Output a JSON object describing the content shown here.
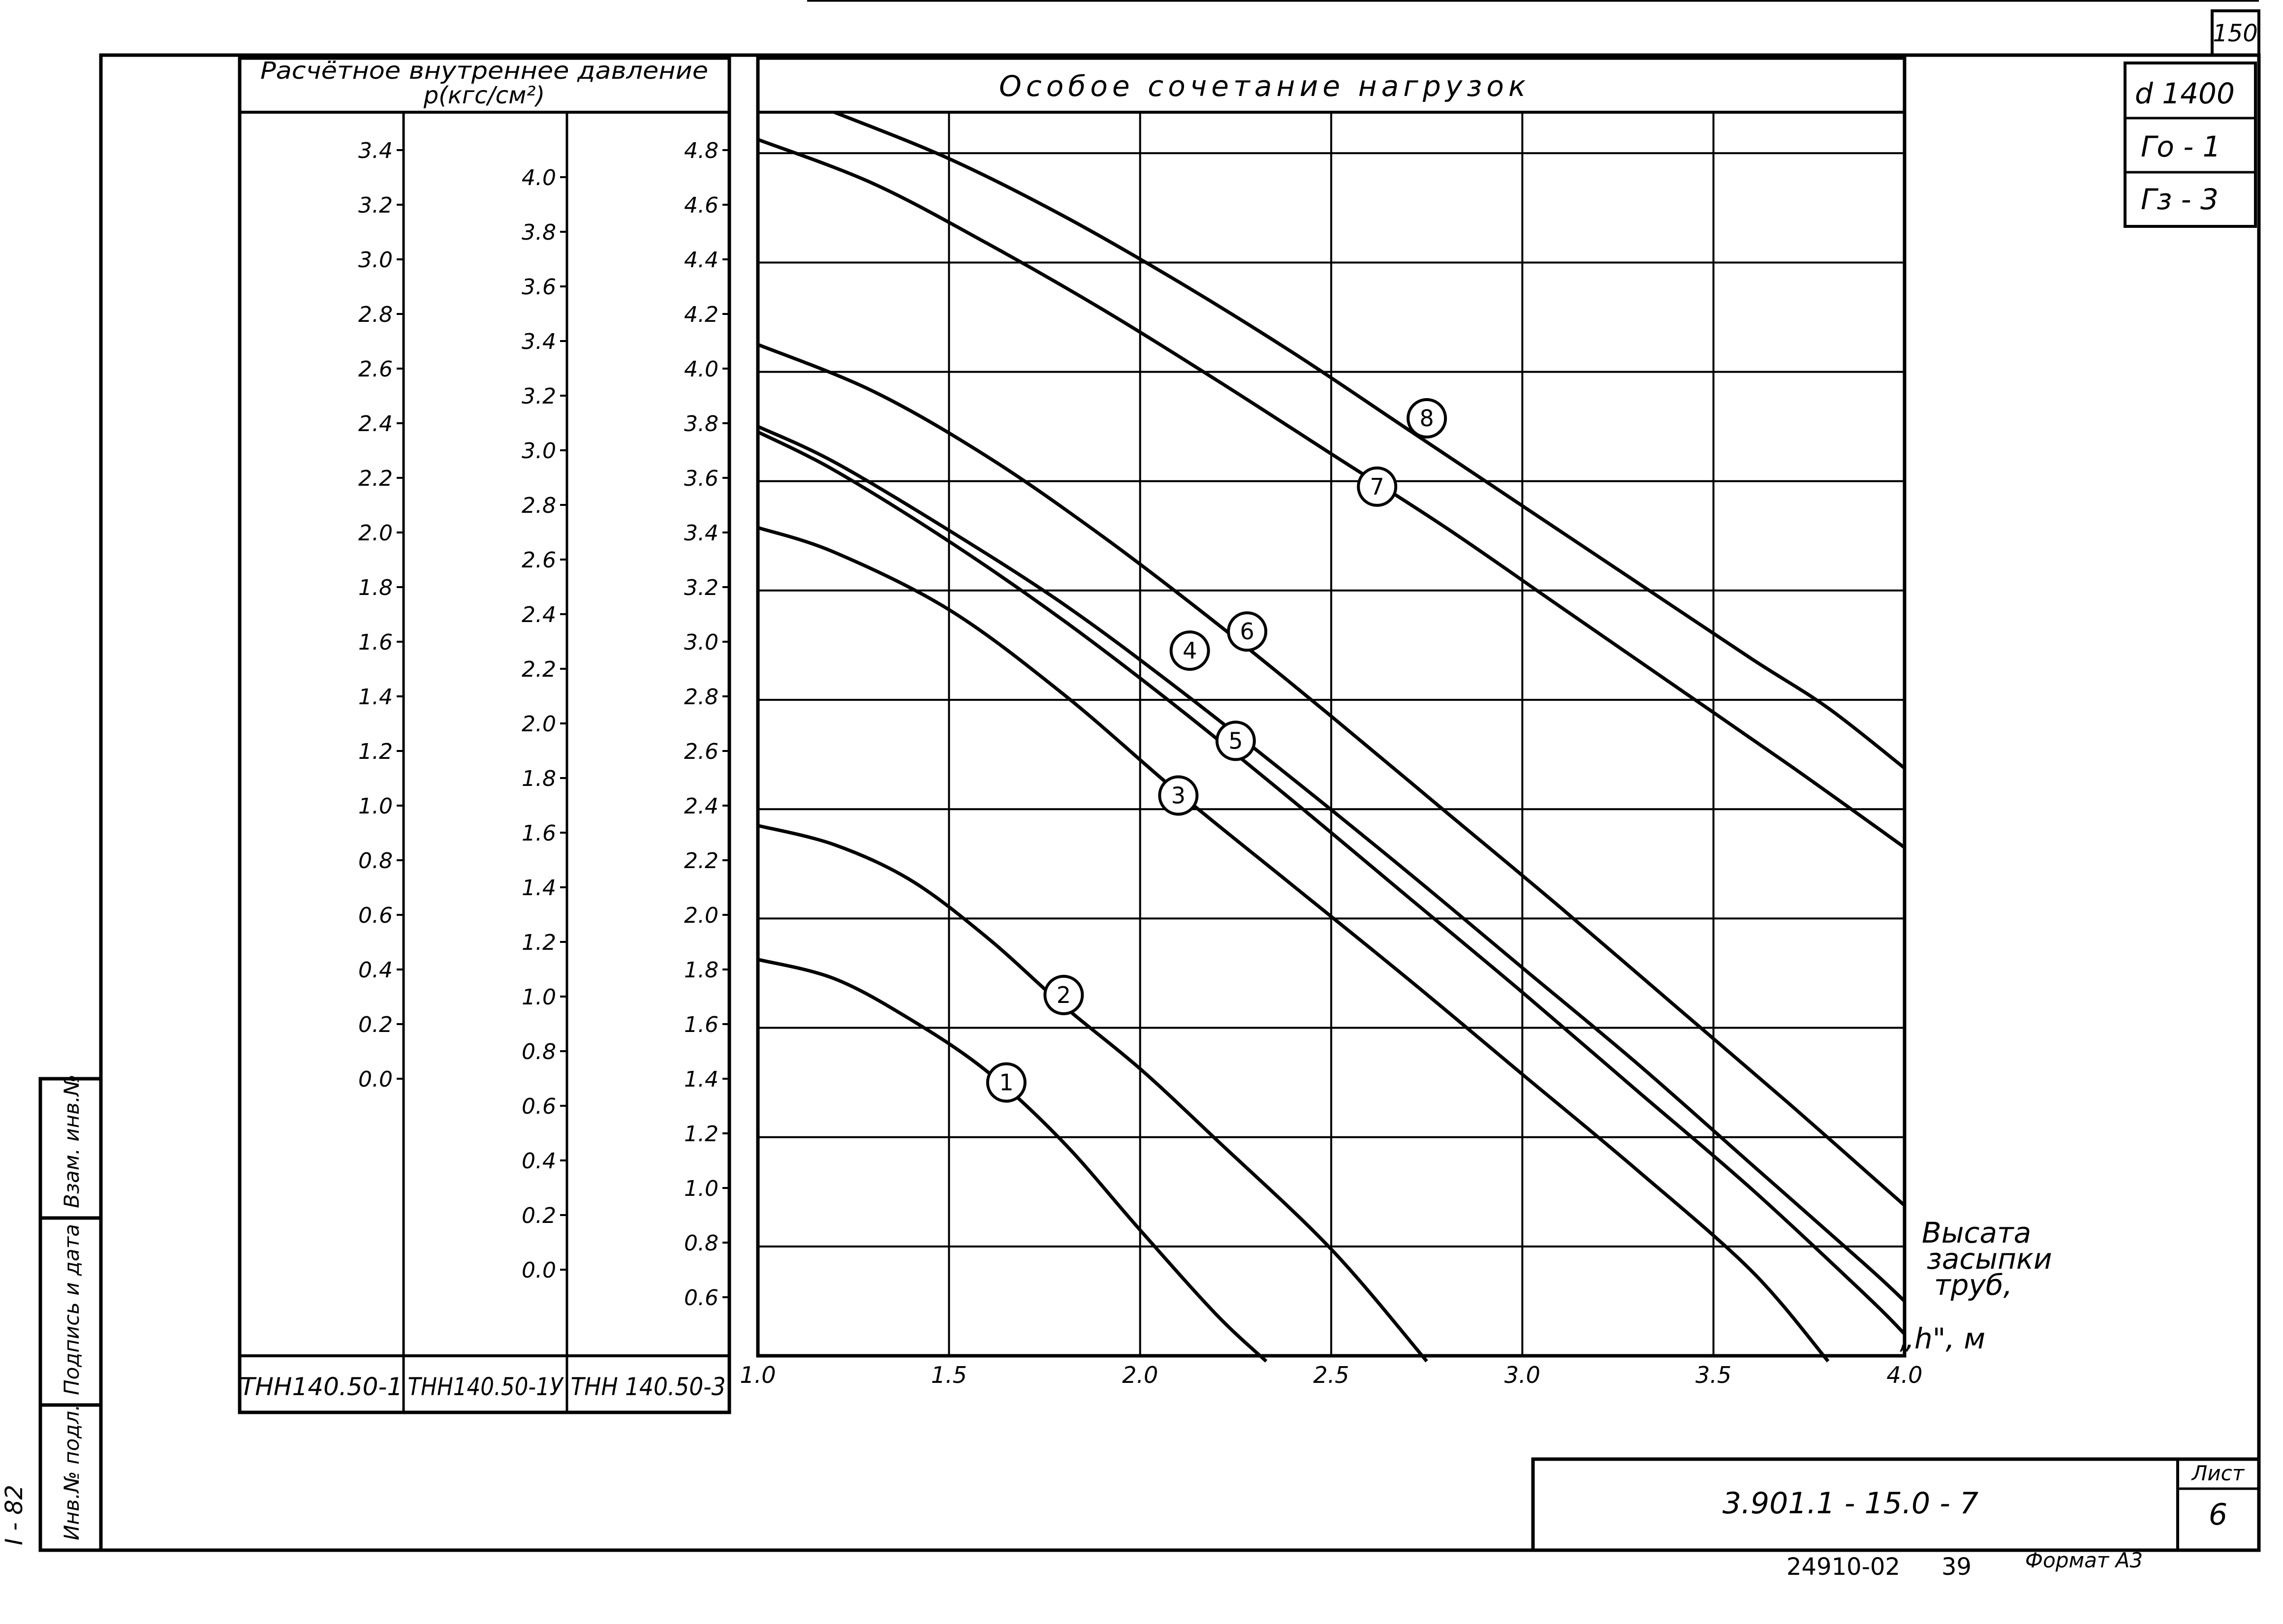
{
  "page_number": "150",
  "side_stamp": {
    "inv_podl": "Инв.№ подл.",
    "podpis_data": "Подпись и дата",
    "vzam_inv": "Взам. инв.№",
    "sheet_code": "I - 82"
  },
  "info_boxes": [
    "d 1400",
    "Го - 1",
    "Гз - 3"
  ],
  "pressure_table": {
    "header_line1": "Расчётное внутреннее давление",
    "header_line2": "р(кгс/см²)",
    "columns": [
      {
        "model": "ТНН140.50-1",
        "ticks": [
          "3.4",
          "3.2",
          "3.0",
          "2.8",
          "2.6",
          "2.4",
          "2.2",
          "2.0",
          "1.8",
          "1.6",
          "1.4",
          "1.2",
          "1.0",
          "0.8",
          "0.6",
          "0.4",
          "0.2",
          "0.0"
        ]
      },
      {
        "model": "ТНН140.50-1У",
        "ticks": [
          "4.0",
          "3.8",
          "3.6",
          "3.4",
          "3.2",
          "3.0",
          "2.8",
          "2.6",
          "2.4",
          "2.2",
          "2.0",
          "1.8",
          "1.6",
          "1.4",
          "1.2",
          "1.0",
          "0.8",
          "0.6",
          "0.4",
          "0.2",
          "0.0"
        ]
      },
      {
        "model": "ТНН 140.50-3",
        "ticks": [
          "4.8",
          "4.6",
          "4.4",
          "4.2",
          "4.0",
          "3.8",
          "3.6",
          "3.4",
          "3.2",
          "3.0",
          "2.8",
          "2.6",
          "2.4",
          "2.2",
          "2.0",
          "1.8",
          "1.6",
          "1.4",
          "1.2",
          "1.0",
          "0.8",
          "0.6"
        ]
      }
    ]
  },
  "chart_data": {
    "type": "line",
    "title": "Особое сочетание нагрузок",
    "xlabel": "Высота засыпки труб, „h\", м",
    "xlabel_lines": [
      "Высата",
      "засыпки",
      "труб,",
      "„h\", м"
    ],
    "xlim": [
      1.0,
      4.0
    ],
    "ylim": [
      0.4,
      4.95
    ],
    "x_ticks": [
      "1.0",
      "1.5",
      "2.0",
      "2.5",
      "3.0",
      "3.5",
      "4.0"
    ],
    "x_grid": [
      1.5,
      2.0,
      2.5,
      3.0,
      3.5
    ],
    "y_grid": [
      0.8,
      1.2,
      1.6,
      2.0,
      2.4,
      2.8,
      3.2,
      3.6,
      4.0,
      4.4,
      4.8
    ],
    "grid": true,
    "series": [
      {
        "name": "1",
        "points": [
          [
            1.0,
            1.85
          ],
          [
            1.2,
            1.78
          ],
          [
            1.4,
            1.63
          ],
          [
            1.6,
            1.44
          ],
          [
            1.8,
            1.18
          ],
          [
            2.0,
            0.86
          ],
          [
            2.2,
            0.55
          ],
          [
            2.33,
            0.38
          ]
        ],
        "label_at": [
          1.65,
          1.4
        ]
      },
      {
        "name": "2",
        "points": [
          [
            1.0,
            2.34
          ],
          [
            1.2,
            2.27
          ],
          [
            1.4,
            2.14
          ],
          [
            1.6,
            1.93
          ],
          [
            1.8,
            1.68
          ],
          [
            2.0,
            1.45
          ],
          [
            2.2,
            1.19
          ],
          [
            2.5,
            0.79
          ],
          [
            2.75,
            0.38
          ]
        ],
        "label_at": [
          1.8,
          1.72
        ]
      },
      {
        "name": "3",
        "points": [
          [
            1.0,
            3.43
          ],
          [
            1.2,
            3.34
          ],
          [
            1.5,
            3.13
          ],
          [
            1.8,
            2.82
          ],
          [
            2.1,
            2.46
          ],
          [
            2.4,
            2.12
          ],
          [
            2.7,
            1.78
          ],
          [
            3.0,
            1.43
          ],
          [
            3.3,
            1.08
          ],
          [
            3.6,
            0.71
          ],
          [
            3.8,
            0.38
          ]
        ],
        "label_at": [
          2.1,
          2.45
        ]
      },
      {
        "name": "4",
        "points": [
          [
            1.0,
            3.8
          ],
          [
            1.2,
            3.67
          ],
          [
            1.5,
            3.42
          ],
          [
            1.8,
            3.15
          ],
          [
            2.1,
            2.84
          ],
          [
            2.4,
            2.51
          ],
          [
            2.7,
            2.17
          ],
          [
            3.0,
            1.82
          ],
          [
            3.3,
            1.47
          ],
          [
            3.6,
            1.1
          ],
          [
            3.9,
            0.73
          ],
          [
            4.0,
            0.6
          ]
        ],
        "label_at": [
          2.13,
          2.98
        ]
      },
      {
        "name": "5",
        "points": [
          [
            1.0,
            3.78
          ],
          [
            1.2,
            3.64
          ],
          [
            1.5,
            3.38
          ],
          [
            1.8,
            3.09
          ],
          [
            2.1,
            2.77
          ],
          [
            2.4,
            2.43
          ],
          [
            2.7,
            2.08
          ],
          [
            3.0,
            1.73
          ],
          [
            3.3,
            1.37
          ],
          [
            3.6,
            1.01
          ],
          [
            3.9,
            0.62
          ],
          [
            4.0,
            0.48
          ]
        ],
        "label_at": [
          2.25,
          2.65
        ]
      },
      {
        "name": "6",
        "points": [
          [
            1.0,
            4.1
          ],
          [
            1.3,
            3.93
          ],
          [
            1.6,
            3.69
          ],
          [
            1.9,
            3.4
          ],
          [
            2.2,
            3.08
          ],
          [
            2.5,
            2.74
          ],
          [
            2.8,
            2.39
          ],
          [
            3.1,
            2.04
          ],
          [
            3.4,
            1.68
          ],
          [
            3.7,
            1.32
          ],
          [
            4.0,
            0.95
          ]
        ],
        "label_at": [
          2.28,
          3.05
        ]
      },
      {
        "name": "7",
        "points": [
          [
            1.0,
            4.85
          ],
          [
            1.3,
            4.69
          ],
          [
            1.6,
            4.47
          ],
          [
            1.9,
            4.23
          ],
          [
            2.2,
            3.97
          ],
          [
            2.5,
            3.7
          ],
          [
            2.8,
            3.43
          ],
          [
            3.1,
            3.14
          ],
          [
            3.4,
            2.85
          ],
          [
            3.7,
            2.56
          ],
          [
            4.0,
            2.26
          ]
        ],
        "label_at": [
          2.62,
          3.58
        ]
      },
      {
        "name": "8",
        "points": [
          [
            1.2,
            4.95
          ],
          [
            1.5,
            4.78
          ],
          [
            1.8,
            4.57
          ],
          [
            2.1,
            4.33
          ],
          [
            2.4,
            4.07
          ],
          [
            2.7,
            3.79
          ],
          [
            3.0,
            3.51
          ],
          [
            3.3,
            3.23
          ],
          [
            3.6,
            2.95
          ],
          [
            3.8,
            2.77
          ],
          [
            4.0,
            2.55
          ]
        ],
        "label_at": [
          2.75,
          3.83
        ]
      }
    ]
  },
  "title_block": {
    "code": "3.901.1 - 15.0 - 7",
    "list_label": "Лист",
    "list_number": "6"
  },
  "footer": {
    "number": "24910-02",
    "sub": "39",
    "format": "Формат А3"
  }
}
